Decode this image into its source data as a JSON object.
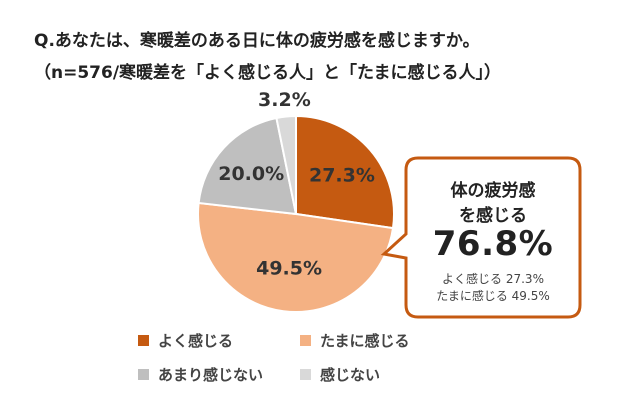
{
  "question": {
    "line1": "Q.あなたは、寒暖差のある日に体の疲労感を感じますか。",
    "line2": "（n=576/寒暖差を「よく感じる人」と「たまに感じる人」）"
  },
  "chart_data": {
    "type": "pie",
    "categories": [
      "よく感じる",
      "たまに感じる",
      "あまり感じない",
      "感じない"
    ],
    "values": [
      27.3,
      49.5,
      20.0,
      3.2
    ],
    "value_labels": [
      "27.3%",
      "49.5%",
      "20.0%",
      "3.2%"
    ],
    "colors": [
      "#c55a11",
      "#f4b183",
      "#bfbfbf",
      "#d9d9d9"
    ],
    "legend_placement": "bottom"
  },
  "callout": {
    "heading_line1": "体の疲労感",
    "heading_line2": "を感じる",
    "total": "76.8%",
    "detail_line1": "よく感じる 27.3%",
    "detail_line2": "たまに感じる 49.5%",
    "border_color": "#c55a11"
  }
}
